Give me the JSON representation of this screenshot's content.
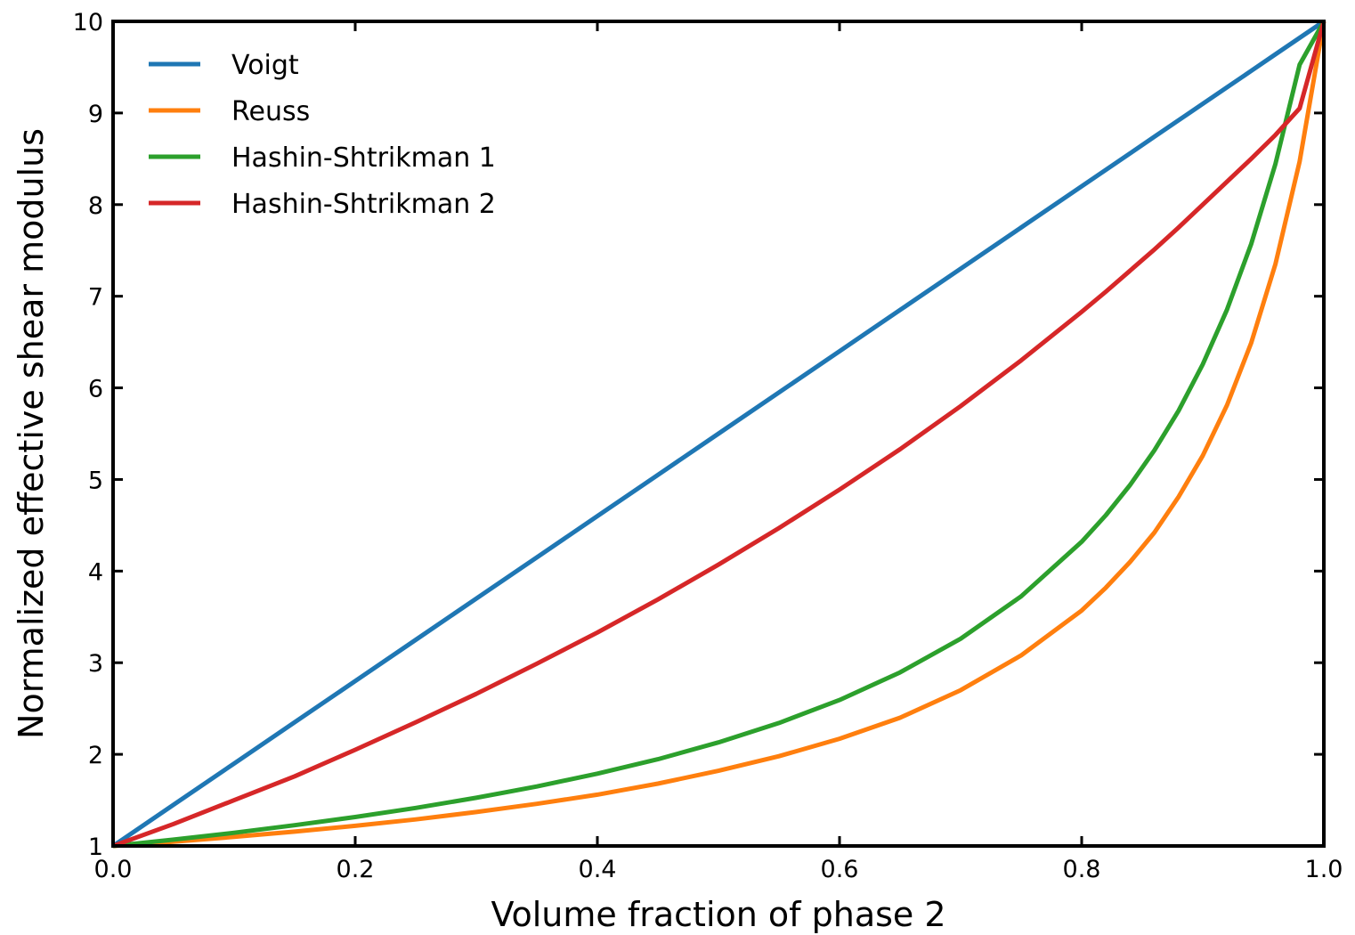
{
  "chart_data": {
    "type": "line",
    "title": "",
    "xlabel": "Volume fraction of phase 2",
    "ylabel": "Normalized effective shear modulus",
    "xlim": [
      0.0,
      1.0
    ],
    "ylim": [
      1,
      10
    ],
    "grid": false,
    "legend_position": "top-left",
    "x_ticks": [
      "0.0",
      "0.2",
      "0.4",
      "0.6",
      "0.8",
      "1.0"
    ],
    "y_ticks": [
      "1",
      "2",
      "3",
      "4",
      "5",
      "6",
      "7",
      "8",
      "9",
      "10"
    ],
    "x": [
      0.0,
      0.05,
      0.1,
      0.15,
      0.2,
      0.25,
      0.3,
      0.35,
      0.4,
      0.45,
      0.5,
      0.55,
      0.6,
      0.65,
      0.7,
      0.75,
      0.8,
      0.82,
      0.84,
      0.86,
      0.88,
      0.9,
      0.92,
      0.94,
      0.96,
      0.98,
      1.0
    ],
    "series": [
      {
        "name": "Voigt",
        "color": "#1f77b4",
        "values": [
          1.0,
          1.45,
          1.9,
          2.35,
          2.8,
          3.25,
          3.7,
          4.15,
          4.6,
          5.05,
          5.5,
          5.95,
          6.4,
          6.85,
          7.3,
          7.75,
          8.2,
          8.38,
          8.56,
          8.74,
          8.92,
          9.1,
          9.28,
          9.46,
          9.64,
          9.82,
          10.0
        ]
      },
      {
        "name": "Reuss",
        "color": "#ff7f0e",
        "values": [
          1.0,
          1.047,
          1.099,
          1.156,
          1.22,
          1.29,
          1.37,
          1.46,
          1.56,
          1.68,
          1.82,
          1.98,
          2.17,
          2.4,
          2.7,
          3.08,
          3.57,
          3.82,
          4.1,
          4.42,
          4.81,
          5.26,
          5.81,
          6.49,
          7.35,
          8.47,
          10.0
        ]
      },
      {
        "name": "Hashin-Shtrikman 1",
        "color": "#2ca02c",
        "values": [
          1.0,
          1.069,
          1.144,
          1.226,
          1.316,
          1.415,
          1.526,
          1.649,
          1.789,
          1.947,
          2.13,
          2.342,
          2.593,
          2.894,
          3.262,
          3.724,
          4.32,
          4.611,
          4.94,
          5.317,
          5.75,
          6.257,
          6.853,
          7.57,
          8.443,
          9.528,
          10.0
        ]
      },
      {
        "name": "Hashin-Shtrikman 2",
        "color": "#d62728",
        "values": [
          1.0,
          1.24,
          1.5,
          1.76,
          2.05,
          2.35,
          2.66,
          2.99,
          3.33,
          3.69,
          4.07,
          4.47,
          4.89,
          5.33,
          5.8,
          6.3,
          6.83,
          7.05,
          7.28,
          7.51,
          7.75,
          8.0,
          8.25,
          8.5,
          8.76,
          9.05,
          10.0
        ]
      }
    ]
  }
}
